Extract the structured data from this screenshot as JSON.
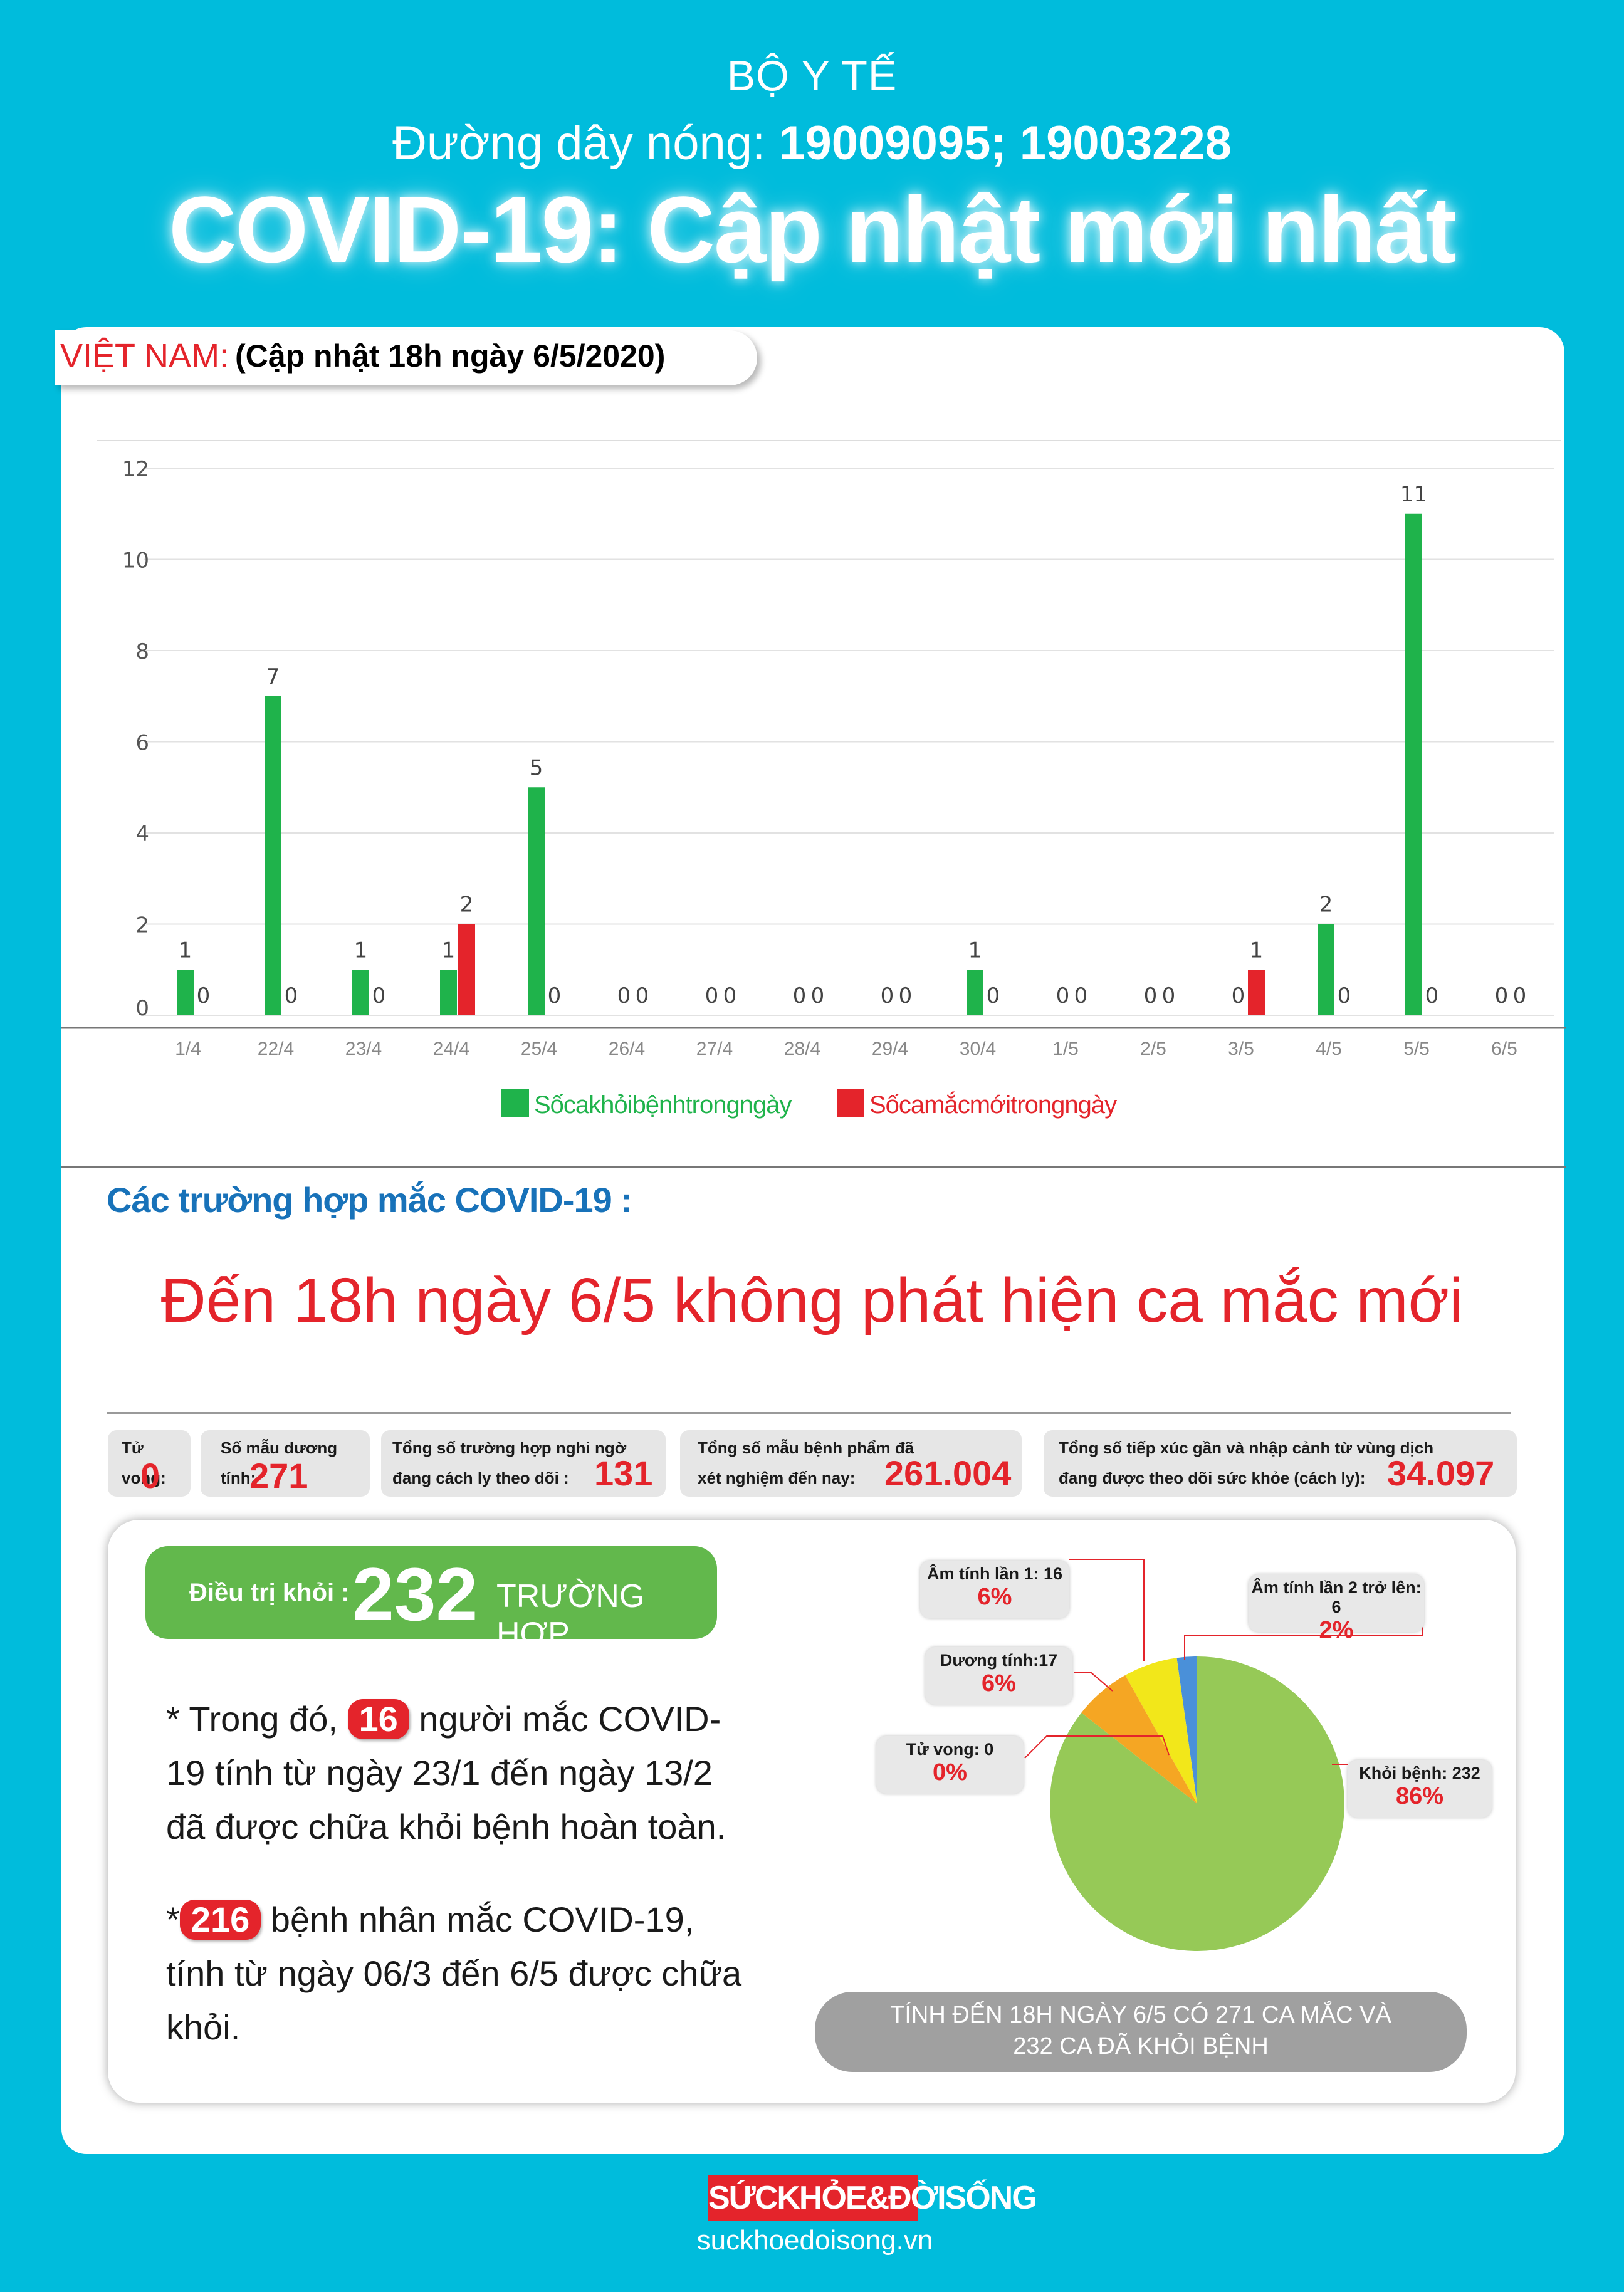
{
  "header": {
    "ministry": "BỘ Y TẾ",
    "hotline_label": "Đường dây nóng: ",
    "hotline_numbers": "19009095; 19003228",
    "title": "COVID-19: Cập nhật mới nhất"
  },
  "region": {
    "country": "VIỆT NAM:",
    "update": "(Cập nhật 18h ngày 6/5/2020)"
  },
  "colors": {
    "recovered": "#1fb34b",
    "new_cases": "#e4242b",
    "background": "#00bcdc"
  },
  "chart_data": {
    "type": "bar",
    "categories": [
      "1/4",
      "22/4",
      "23/4",
      "24/4",
      "25/4",
      "26/4",
      "27/4",
      "28/4",
      "29/4",
      "30/4",
      "1/5",
      "2/5",
      "3/5",
      "4/5",
      "5/5",
      "6/5"
    ],
    "series": [
      {
        "name": "Sốcakhỏibệnhtrongngày",
        "color": "#1fb34b",
        "values": [
          1,
          7,
          1,
          1,
          5,
          0,
          0,
          0,
          0,
          1,
          0,
          0,
          0,
          2,
          11,
          0
        ]
      },
      {
        "name": "Sốcamắcmớitrongngày",
        "color": "#e4242b",
        "values": [
          0,
          0,
          0,
          2,
          0,
          0,
          0,
          0,
          0,
          0,
          0,
          0,
          1,
          0,
          0,
          0
        ]
      }
    ],
    "ylim": [
      0,
      12
    ],
    "yticks": [
      0,
      2,
      4,
      6,
      8,
      10,
      12
    ],
    "grid": true,
    "legend": "bottom"
  },
  "cases": {
    "section_title": "Các trường hợp mắc COVID-19 :",
    "headline": "Đến 18h ngày 6/5 không phát hiện ca mắc mới"
  },
  "stats": [
    {
      "label1": "Tử vong:",
      "label2": "",
      "value": "0"
    },
    {
      "label1": "Số mẫu dương tính:",
      "label2": "",
      "value": "271"
    },
    {
      "label1": "Tổng số trường hợp nghi ngờ",
      "label2": "đang cách ly theo dõi :",
      "value": "131"
    },
    {
      "label1": "Tổng số mẫu bệnh phẩm đã",
      "label2": "xét nghiệm đến nay:",
      "value": "261.004"
    },
    {
      "label1": "Tổng số tiếp xúc gần và nhập cảnh từ vùng dịch",
      "label2": "đang được theo dõi sức khỏe (cách ly):",
      "value": "34.097"
    }
  ],
  "recovered": {
    "label": "Điều trị khỏi :",
    "count": "232",
    "unit": "TRƯỜNG HỢP"
  },
  "notes": [
    {
      "prefix": "* Trong đó, ",
      "highlight": "16",
      "text": " người mắc COVID-19 tính từ ngày 23/1 đến ngày 13/2 đã được chữa khỏi bệnh hoàn toàn."
    },
    {
      "prefix": "*",
      "highlight": "216",
      "text": " bệnh nhân  mắc COVID-19, tính từ ngày 06/3 đến 6/5 được chữa khỏi."
    }
  ],
  "pie": {
    "slices": [
      {
        "label": "Khỏi bệnh: 232",
        "percent": "86%",
        "value": 232,
        "color": "#96c957"
      },
      {
        "label": "Tử vong: 0",
        "percent": "0%",
        "value": 0,
        "color": "#e4242b"
      },
      {
        "label": "Dương tính:17",
        "percent": "6%",
        "value": 17,
        "color": "#f5a623"
      },
      {
        "label": "Âm tính lần 1: 16",
        "percent": "6%",
        "value": 16,
        "color": "#f2e71a"
      },
      {
        "label": "Âm tính lần 2 trở lên: 6",
        "percent": "2%",
        "value": 6,
        "color": "#4a90d9"
      }
    ]
  },
  "total_note": {
    "line1": "TÍNH ĐẾN 18H NGÀY 6/5 CÓ 271 CA MẮC VÀ",
    "line2": "232 CA ĐÃ KHỎI BỆNH"
  },
  "footer": {
    "logo": "SỨCKHỎE&ĐỜISỐNG",
    "site": "suckhoedoisong.vn"
  }
}
